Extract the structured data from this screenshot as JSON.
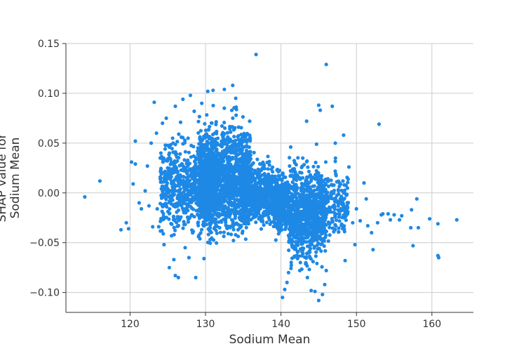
{
  "chart_data": {
    "type": "scatter",
    "title": "",
    "xlabel": "Sodium Mean",
    "ylabel_lines": [
      "SHAP value for",
      "Sodium Mean"
    ],
    "xlim": [
      111.5,
      165.5
    ],
    "ylim": [
      -0.12,
      0.15
    ],
    "xticks": [
      120,
      130,
      140,
      150,
      160
    ],
    "yticks": [
      -0.1,
      -0.05,
      0.0,
      0.05,
      0.1,
      0.15
    ],
    "xtick_labels": [
      "120",
      "130",
      "140",
      "150",
      "160"
    ],
    "ytick_labels": [
      "−0.10",
      "−0.05",
      "0.00",
      "0.05",
      "0.10",
      "0.15"
    ],
    "grid": true,
    "point_color": "#1E88E5",
    "points": [
      [
        114,
        -0.004
      ],
      [
        116,
        0.012
      ],
      [
        118.8,
        -0.037
      ],
      [
        119.5,
        -0.03
      ],
      [
        119.8,
        -0.036
      ],
      [
        120.2,
        0.031
      ],
      [
        120.4,
        0.009
      ],
      [
        120.7,
        0.029
      ],
      [
        120.7,
        0.052
      ],
      [
        121.2,
        -0.01
      ],
      [
        121.5,
        -0.016
      ],
      [
        122,
        0.002
      ],
      [
        122.3,
        0.027
      ],
      [
        122.5,
        -0.013
      ],
      [
        122.8,
        0.05
      ],
      [
        123,
        -0.034
      ],
      [
        123.2,
        0.091
      ],
      [
        123.5,
        0.06
      ],
      [
        123.6,
        -0.016
      ],
      [
        123.8,
        -0.034
      ],
      [
        124,
        0.035
      ],
      [
        124.3,
        0.07
      ],
      [
        124.5,
        -0.052
      ],
      [
        124.8,
        0.075
      ],
      [
        124.9,
        0.005
      ],
      [
        125.2,
        -0.075
      ],
      [
        125.5,
        -0.043
      ],
      [
        125.8,
        -0.067
      ],
      [
        126,
        0.087
      ],
      [
        126,
        -0.083
      ],
      [
        126.4,
        -0.085
      ],
      [
        126.7,
        0.071
      ],
      [
        127,
        0.094
      ],
      [
        127.3,
        -0.055
      ],
      [
        127.8,
        -0.065
      ],
      [
        128,
        0.098
      ],
      [
        128.5,
        0.082
      ],
      [
        128.7,
        -0.085
      ],
      [
        129.5,
        0.09
      ],
      [
        129.8,
        -0.066
      ],
      [
        130.3,
        0.102
      ],
      [
        131,
        0.103
      ],
      [
        132.5,
        0.104
      ],
      [
        133.6,
        0.108
      ],
      [
        134,
        0.095
      ],
      [
        136.7,
        0.139
      ],
      [
        146,
        0.129
      ],
      [
        146.8,
        0.087
      ],
      [
        145,
        0.088
      ],
      [
        145.2,
        0.083
      ],
      [
        143.4,
        0.072
      ],
      [
        147.2,
        0.05
      ],
      [
        148.3,
        0.058
      ],
      [
        148.5,
        -0.068
      ],
      [
        149,
        0.026
      ],
      [
        149.5,
        -0.03
      ],
      [
        149.8,
        -0.052
      ],
      [
        150,
        -0.016
      ],
      [
        150.5,
        -0.028
      ],
      [
        151,
        0.01
      ],
      [
        151.3,
        -0.006
      ],
      [
        151.5,
        -0.033
      ],
      [
        152,
        -0.04
      ],
      [
        152.2,
        -0.057
      ],
      [
        152.8,
        -0.03
      ],
      [
        153,
        0.069
      ],
      [
        153.3,
        -0.022
      ],
      [
        153.5,
        -0.021
      ],
      [
        154.2,
        -0.021
      ],
      [
        154.5,
        -0.027
      ],
      [
        155,
        -0.022
      ],
      [
        155.7,
        -0.027
      ],
      [
        156,
        -0.023
      ],
      [
        157.2,
        -0.035
      ],
      [
        157.3,
        -0.017
      ],
      [
        157.5,
        -0.053
      ],
      [
        158,
        -0.006
      ],
      [
        158.2,
        -0.035
      ],
      [
        159.7,
        -0.026
      ],
      [
        160.8,
        -0.063
      ],
      [
        160.9,
        -0.065
      ],
      [
        160.8,
        -0.031
      ],
      [
        163.3,
        -0.027
      ],
      [
        140.2,
        -0.105
      ],
      [
        140.5,
        -0.097
      ],
      [
        140.8,
        -0.09
      ],
      [
        141,
        -0.08
      ],
      [
        144,
        -0.098
      ],
      [
        144.5,
        -0.099
      ],
      [
        145,
        -0.108
      ],
      [
        145.5,
        -0.102
      ],
      [
        143.5,
        -0.085
      ],
      [
        142.5,
        -0.078
      ],
      [
        146,
        -0.078
      ],
      [
        145.8,
        -0.092
      ]
    ],
    "clusters": [
      {
        "xrange": [
          124,
          131
        ],
        "center": 0.005,
        "spread": 0.045,
        "count": 700
      },
      {
        "xrange": [
          129,
          136
        ],
        "center": 0.015,
        "spread": 0.055,
        "count": 1600
      },
      {
        "xrange": [
          135,
          139
        ],
        "center": 0.0,
        "spread": 0.03,
        "count": 600
      },
      {
        "xrange": [
          139,
          141
        ],
        "center": -0.01,
        "spread": 0.03,
        "count": 400
      },
      {
        "xrange": [
          141,
          146
        ],
        "center": -0.02,
        "spread": 0.05,
        "count": 900
      },
      {
        "xrange": [
          146,
          149
        ],
        "center": -0.01,
        "spread": 0.035,
        "count": 150
      }
    ]
  }
}
